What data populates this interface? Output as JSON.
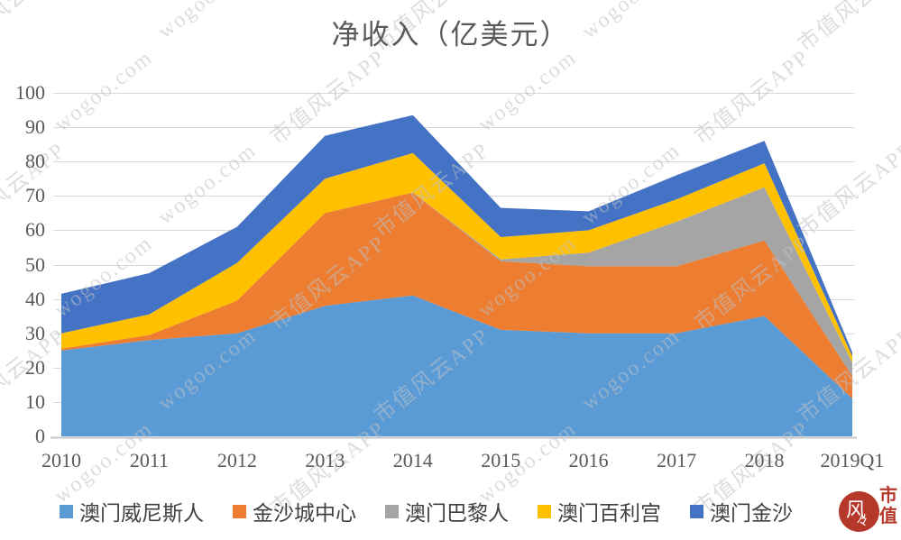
{
  "chart_data": {
    "type": "area",
    "stacked": true,
    "title": "净收入（亿美元）",
    "categories": [
      "2010",
      "2011",
      "2012",
      "2013",
      "2014",
      "2015",
      "2016",
      "2017",
      "2018",
      "2019Q1"
    ],
    "series": [
      {
        "name": "澳门威尼斯人",
        "color": "#5B9BD5",
        "values": [
          25,
          28,
          30,
          38,
          41,
          31,
          30,
          30,
          35,
          11
        ]
      },
      {
        "name": "金沙城中心",
        "color": "#ED7D31",
        "values": [
          0.5,
          1.5,
          9.5,
          27,
          30,
          20,
          19.5,
          19.5,
          22,
          6.5
        ]
      },
      {
        "name": "澳门巴黎人",
        "color": "#A5A5A5",
        "values": [
          0,
          0,
          0,
          0,
          0,
          0.5,
          4,
          13,
          15.5,
          4
        ]
      },
      {
        "name": "澳门百利宫",
        "color": "#FFC000",
        "values": [
          4.5,
          6,
          11,
          10,
          11.5,
          6.5,
          6.5,
          6.5,
          7,
          1.8
        ]
      },
      {
        "name": "澳门金沙",
        "color": "#4472C4",
        "values": [
          11.5,
          12,
          10.5,
          12.5,
          11,
          8.5,
          5.5,
          7,
          6.5,
          1.2
        ]
      }
    ],
    "ylim": [
      0,
      100
    ],
    "yticks": [
      0,
      10,
      20,
      30,
      40,
      50,
      60,
      70,
      80,
      90,
      100
    ],
    "grid": true,
    "legend_position": "bottom"
  },
  "watermark": {
    "texts": [
      "市值风云APP",
      "wogoo.com"
    ]
  },
  "logo": {
    "seal_char": "风",
    "seal_mark": "々",
    "side_top": "市",
    "side_bottom": "值"
  },
  "colors": {
    "background": "#ffffff",
    "title_text": "#595959",
    "axis_text": "#595959",
    "gridline": "#d9d9d9",
    "axis_line": "#c3c6cc",
    "legend_text": "#404040",
    "logo_red": "#b5382a"
  }
}
